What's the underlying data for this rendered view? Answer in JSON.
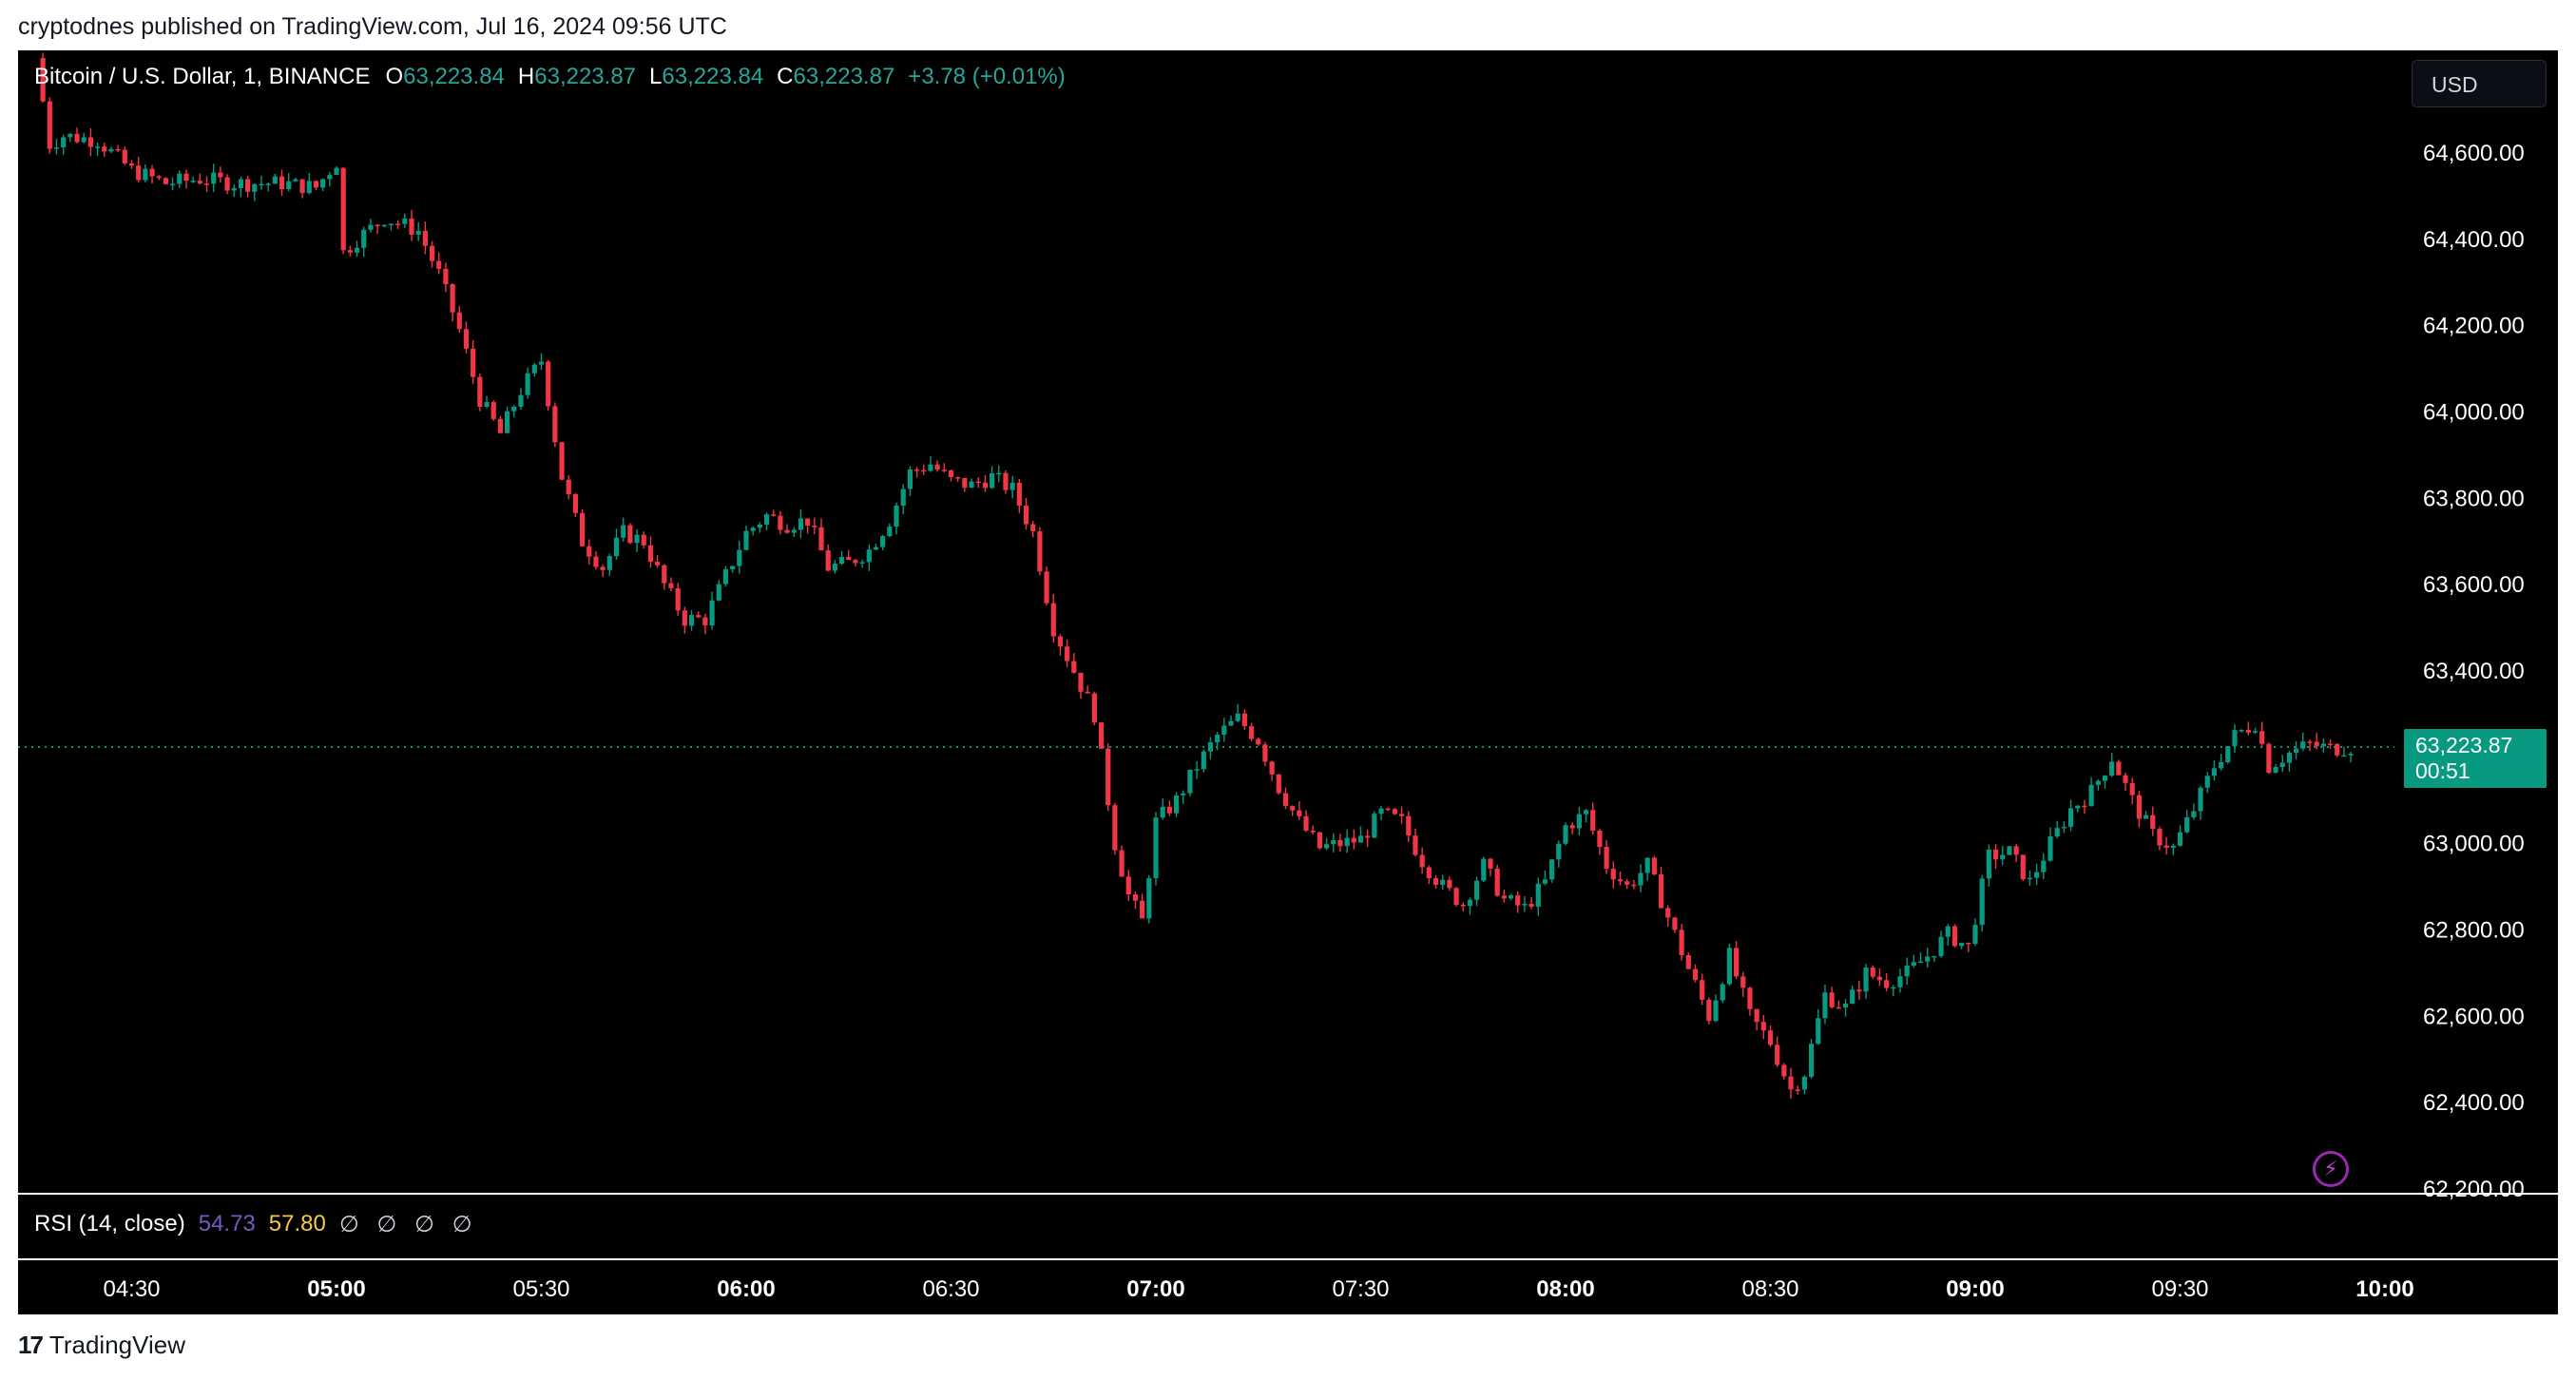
{
  "header": {
    "publish_text": "cryptodnes published on TradingView.com, Jul 16, 2024 09:56 UTC"
  },
  "legend": {
    "symbol": "Bitcoin / U.S. Dollar, 1, BINANCE",
    "open_label": "O",
    "open": "63,223.84",
    "high_label": "H",
    "high": "63,223.87",
    "low_label": "L",
    "low": "63,223.84",
    "close_label": "C",
    "close": "63,223.87",
    "change": "+3.78 (+0.01%)"
  },
  "currency": "USD",
  "price_tag": {
    "price": "63,223.87",
    "countdown": "00:51"
  },
  "rsi": {
    "label": "RSI (14, close)",
    "value": "54.73",
    "ma": "57.80",
    "na": "∅ ∅ ∅ ∅"
  },
  "brand": {
    "logo": "17",
    "name": "TradingView"
  },
  "colors": {
    "up": "#089981",
    "down": "#f23645",
    "background": "#000000",
    "price_line": "#089981",
    "rsi_line": "#7e57c2",
    "rsi_ma": "#f7c948"
  },
  "chart_data": {
    "type": "candlestick",
    "symbol": "BTCUSD",
    "exchange": "BINANCE",
    "interval": "1",
    "ylim": [
      62200,
      64800
    ],
    "y_ticks": [
      "64,600.00",
      "64,400.00",
      "64,200.00",
      "64,000.00",
      "63,800.00",
      "63,600.00",
      "63,400.00",
      "63,000.00",
      "62,800.00",
      "62,600.00",
      "62,400.00",
      "62,200.00"
    ],
    "x_ticks": [
      {
        "label": "04:30",
        "bold": false
      },
      {
        "label": "05:00",
        "bold": true
      },
      {
        "label": "05:30",
        "bold": false
      },
      {
        "label": "06:00",
        "bold": true
      },
      {
        "label": "06:30",
        "bold": false
      },
      {
        "label": "07:00",
        "bold": true
      },
      {
        "label": "07:30",
        "bold": false
      },
      {
        "label": "08:00",
        "bold": true
      },
      {
        "label": "08:30",
        "bold": false
      },
      {
        "label": "09:00",
        "bold": true
      },
      {
        "label": "09:30",
        "bold": false
      },
      {
        "label": "10:00",
        "bold": true
      }
    ],
    "last_price": 63223.87,
    "close_path": [
      {
        "t": "04:16",
        "close": 64820
      },
      {
        "t": "04:18",
        "close": 64620
      },
      {
        "t": "04:20",
        "close": 64640
      },
      {
        "t": "04:25",
        "close": 64630
      },
      {
        "t": "04:30",
        "close": 64560
      },
      {
        "t": "04:35",
        "close": 64530
      },
      {
        "t": "04:40",
        "close": 64540
      },
      {
        "t": "04:45",
        "close": 64530
      },
      {
        "t": "04:52",
        "close": 64530
      },
      {
        "t": "04:57",
        "close": 64520
      },
      {
        "t": "05:00",
        "close": 64580
      },
      {
        "t": "05:01",
        "close": 64370
      },
      {
        "t": "05:03",
        "close": 64400
      },
      {
        "t": "05:07",
        "close": 64450
      },
      {
        "t": "05:12",
        "close": 64420
      },
      {
        "t": "05:15",
        "close": 64320
      },
      {
        "t": "05:18",
        "close": 64190
      },
      {
        "t": "05:21",
        "close": 64030
      },
      {
        "t": "05:24",
        "close": 63950
      },
      {
        "t": "05:27",
        "close": 64050
      },
      {
        "t": "05:30",
        "close": 64120
      },
      {
        "t": "05:33",
        "close": 63850
      },
      {
        "t": "05:36",
        "close": 63700
      },
      {
        "t": "05:39",
        "close": 63640
      },
      {
        "t": "05:42",
        "close": 63720
      },
      {
        "t": "05:45",
        "close": 63700
      },
      {
        "t": "05:48",
        "close": 63600
      },
      {
        "t": "05:51",
        "close": 63520
      },
      {
        "t": "05:54",
        "close": 63520
      },
      {
        "t": "05:57",
        "close": 63620
      },
      {
        "t": "06:00",
        "close": 63720
      },
      {
        "t": "06:03",
        "close": 63760
      },
      {
        "t": "06:06",
        "close": 63740
      },
      {
        "t": "06:09",
        "close": 63750
      },
      {
        "t": "06:12",
        "close": 63640
      },
      {
        "t": "06:15",
        "close": 63650
      },
      {
        "t": "06:18",
        "close": 63680
      },
      {
        "t": "06:21",
        "close": 63750
      },
      {
        "t": "06:24",
        "close": 63860
      },
      {
        "t": "06:27",
        "close": 63880
      },
      {
        "t": "06:30",
        "close": 63840
      },
      {
        "t": "06:33",
        "close": 63830
      },
      {
        "t": "06:36",
        "close": 63850
      },
      {
        "t": "06:39",
        "close": 63820
      },
      {
        "t": "06:42",
        "close": 63720
      },
      {
        "t": "06:45",
        "close": 63500
      },
      {
        "t": "06:48",
        "close": 63400
      },
      {
        "t": "06:51",
        "close": 63300
      },
      {
        "t": "06:54",
        "close": 63000
      },
      {
        "t": "06:56",
        "close": 62880
      },
      {
        "t": "06:58",
        "close": 62820
      },
      {
        "t": "07:00",
        "close": 63050
      },
      {
        "t": "07:03",
        "close": 63100
      },
      {
        "t": "07:06",
        "close": 63180
      },
      {
        "t": "07:09",
        "close": 63250
      },
      {
        "t": "07:12",
        "close": 63290
      },
      {
        "t": "07:15",
        "close": 63240
      },
      {
        "t": "07:18",
        "close": 63130
      },
      {
        "t": "07:21",
        "close": 63050
      },
      {
        "t": "07:24",
        "close": 62990
      },
      {
        "t": "07:27",
        "close": 63000
      },
      {
        "t": "07:30",
        "close": 63010
      },
      {
        "t": "07:33",
        "close": 63070
      },
      {
        "t": "07:36",
        "close": 63050
      },
      {
        "t": "07:39",
        "close": 62960
      },
      {
        "t": "07:42",
        "close": 62900
      },
      {
        "t": "07:45",
        "close": 62860
      },
      {
        "t": "07:48",
        "close": 62950
      },
      {
        "t": "07:51",
        "close": 62870
      },
      {
        "t": "07:54",
        "close": 62850
      },
      {
        "t": "07:57",
        "close": 62910
      },
      {
        "t": "08:00",
        "close": 63040
      },
      {
        "t": "08:03",
        "close": 63070
      },
      {
        "t": "08:06",
        "close": 62950
      },
      {
        "t": "08:09",
        "close": 62900
      },
      {
        "t": "08:12",
        "close": 62950
      },
      {
        "t": "08:15",
        "close": 62830
      },
      {
        "t": "08:18",
        "close": 62710
      },
      {
        "t": "08:21",
        "close": 62600
      },
      {
        "t": "08:24",
        "close": 62740
      },
      {
        "t": "08:27",
        "close": 62600
      },
      {
        "t": "08:30",
        "close": 62540
      },
      {
        "t": "08:33",
        "close": 62430
      },
      {
        "t": "08:35",
        "close": 62470
      },
      {
        "t": "08:38",
        "close": 62650
      },
      {
        "t": "08:41",
        "close": 62620
      },
      {
        "t": "08:44",
        "close": 62700
      },
      {
        "t": "08:47",
        "close": 62680
      },
      {
        "t": "08:50",
        "close": 62700
      },
      {
        "t": "08:53",
        "close": 62740
      },
      {
        "t": "08:56",
        "close": 62790
      },
      {
        "t": "08:59",
        "close": 62760
      },
      {
        "t": "09:02",
        "close": 62970
      },
      {
        "t": "09:05",
        "close": 62980
      },
      {
        "t": "09:08",
        "close": 62910
      },
      {
        "t": "09:11",
        "close": 63000
      },
      {
        "t": "09:14",
        "close": 63080
      },
      {
        "t": "09:17",
        "close": 63120
      },
      {
        "t": "09:20",
        "close": 63200
      },
      {
        "t": "09:23",
        "close": 63100
      },
      {
        "t": "09:26",
        "close": 63020
      },
      {
        "t": "09:29",
        "close": 62990
      },
      {
        "t": "09:32",
        "close": 63080
      },
      {
        "t": "09:35",
        "close": 63180
      },
      {
        "t": "09:38",
        "close": 63250
      },
      {
        "t": "09:41",
        "close": 63280
      },
      {
        "t": "09:43",
        "close": 63180
      },
      {
        "t": "09:46",
        "close": 63210
      },
      {
        "t": "09:49",
        "close": 63230
      },
      {
        "t": "09:52",
        "close": 63220
      },
      {
        "t": "09:55",
        "close": 63224
      }
    ]
  }
}
